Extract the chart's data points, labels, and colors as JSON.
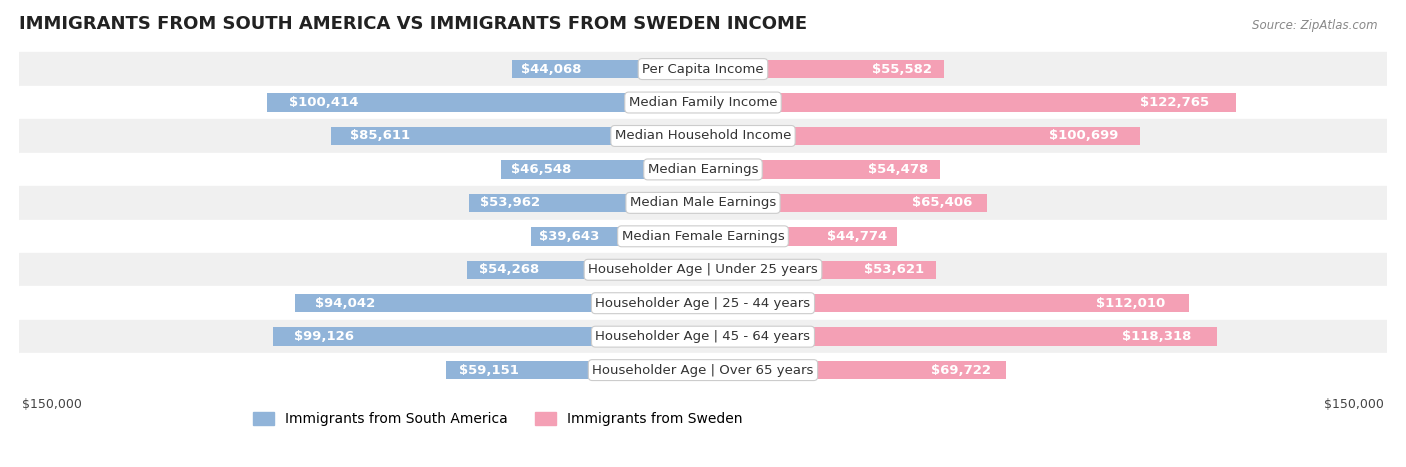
{
  "title": "IMMIGRANTS FROM SOUTH AMERICA VS IMMIGRANTS FROM SWEDEN INCOME",
  "source": "Source: ZipAtlas.com",
  "categories": [
    "Per Capita Income",
    "Median Family Income",
    "Median Household Income",
    "Median Earnings",
    "Median Male Earnings",
    "Median Female Earnings",
    "Householder Age | Under 25 years",
    "Householder Age | 25 - 44 years",
    "Householder Age | 45 - 64 years",
    "Householder Age | Over 65 years"
  ],
  "south_america_values": [
    44068,
    100414,
    85611,
    46548,
    53962,
    39643,
    54268,
    94042,
    99126,
    59151
  ],
  "sweden_values": [
    55582,
    122765,
    100699,
    54478,
    65406,
    44774,
    53621,
    112010,
    118318,
    69722
  ],
  "south_america_labels": [
    "$44,068",
    "$100,414",
    "$85,611",
    "$46,548",
    "$53,962",
    "$39,643",
    "$54,268",
    "$94,042",
    "$99,126",
    "$59,151"
  ],
  "sweden_labels": [
    "$55,582",
    "$122,765",
    "$100,699",
    "$54,478",
    "$65,406",
    "$44,774",
    "$53,621",
    "$112,010",
    "$118,318",
    "$69,722"
  ],
  "max_val": 150000,
  "color_south_america": "#91b4d9",
  "color_sweden": "#f4a0b5",
  "color_south_america_dark": "#6a9fc8",
  "color_sweden_dark": "#f07090",
  "bar_height": 0.55,
  "bg_row_color": "#f0f0f0",
  "bg_alt_color": "#ffffff",
  "label_fontsize": 9.5,
  "category_fontsize": 9.5,
  "title_fontsize": 13,
  "legend_fontsize": 10,
  "threshold_color_label": 15000
}
